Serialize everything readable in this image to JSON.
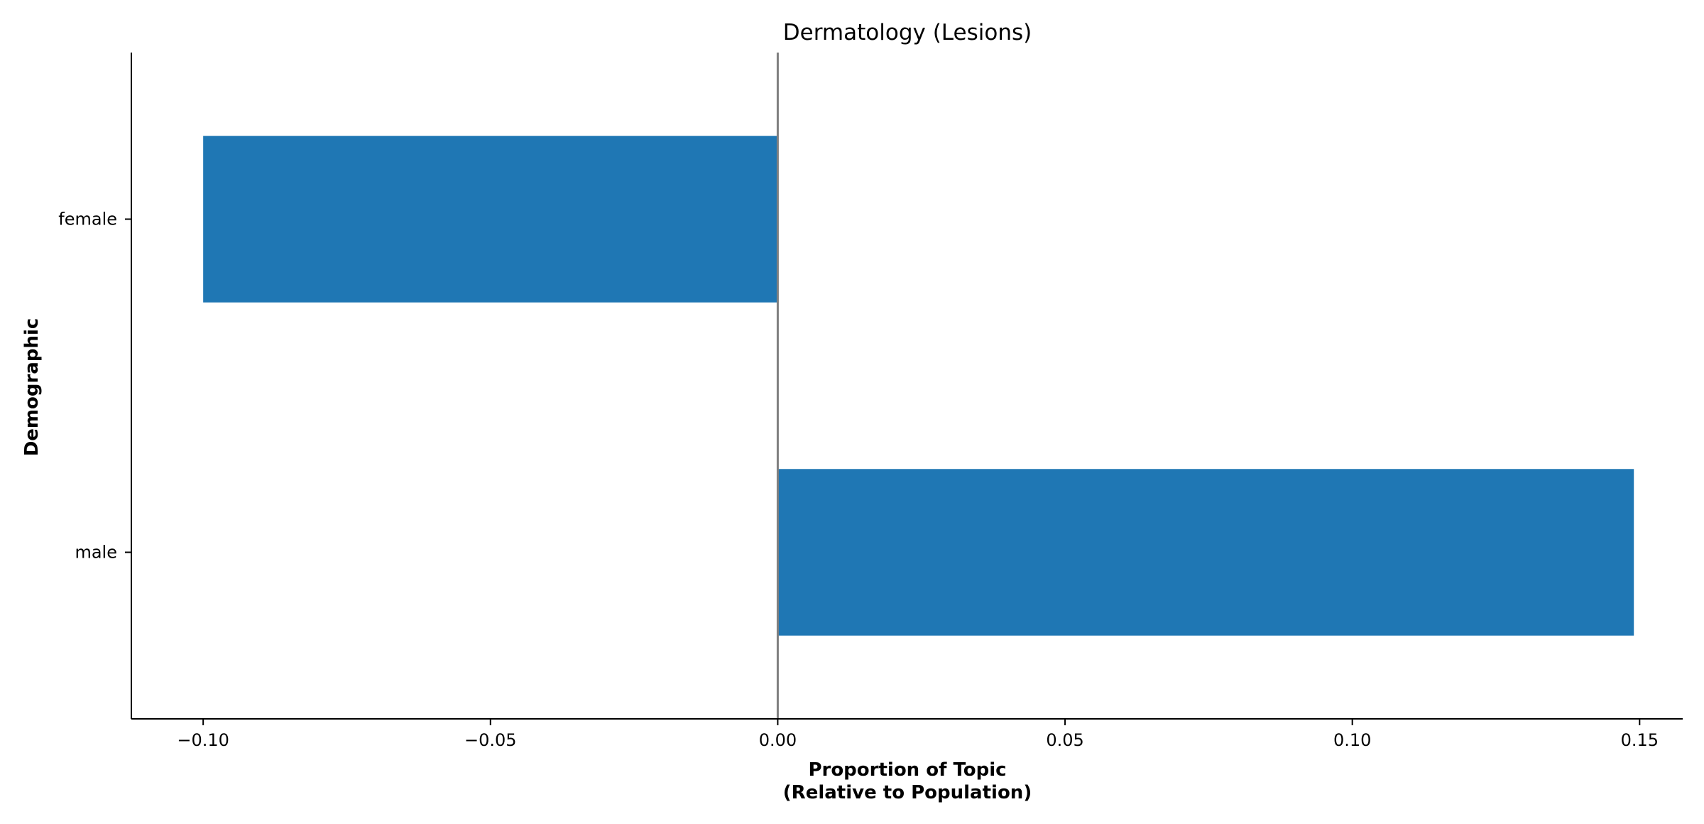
{
  "chart_data": {
    "type": "bar",
    "orientation": "horizontal",
    "title": "Dermatology (Lesions)",
    "xlabel": [
      "Proportion of Topic",
      "(Relative to Population)"
    ],
    "ylabel": "Demographic",
    "categories": [
      "female",
      "male"
    ],
    "values": [
      -0.1,
      0.149
    ],
    "xlim": [
      -0.1125,
      0.1575
    ],
    "xticks": [
      -0.1,
      -0.05,
      0.0,
      0.05,
      0.1,
      0.15
    ],
    "xtick_labels": [
      "−0.10",
      "−0.05",
      "0.00",
      "0.05",
      "0.10",
      "0.15"
    ],
    "bar_color": "#1f77b4",
    "zero_line_color": "#808080",
    "grid": false,
    "legend": "none"
  }
}
